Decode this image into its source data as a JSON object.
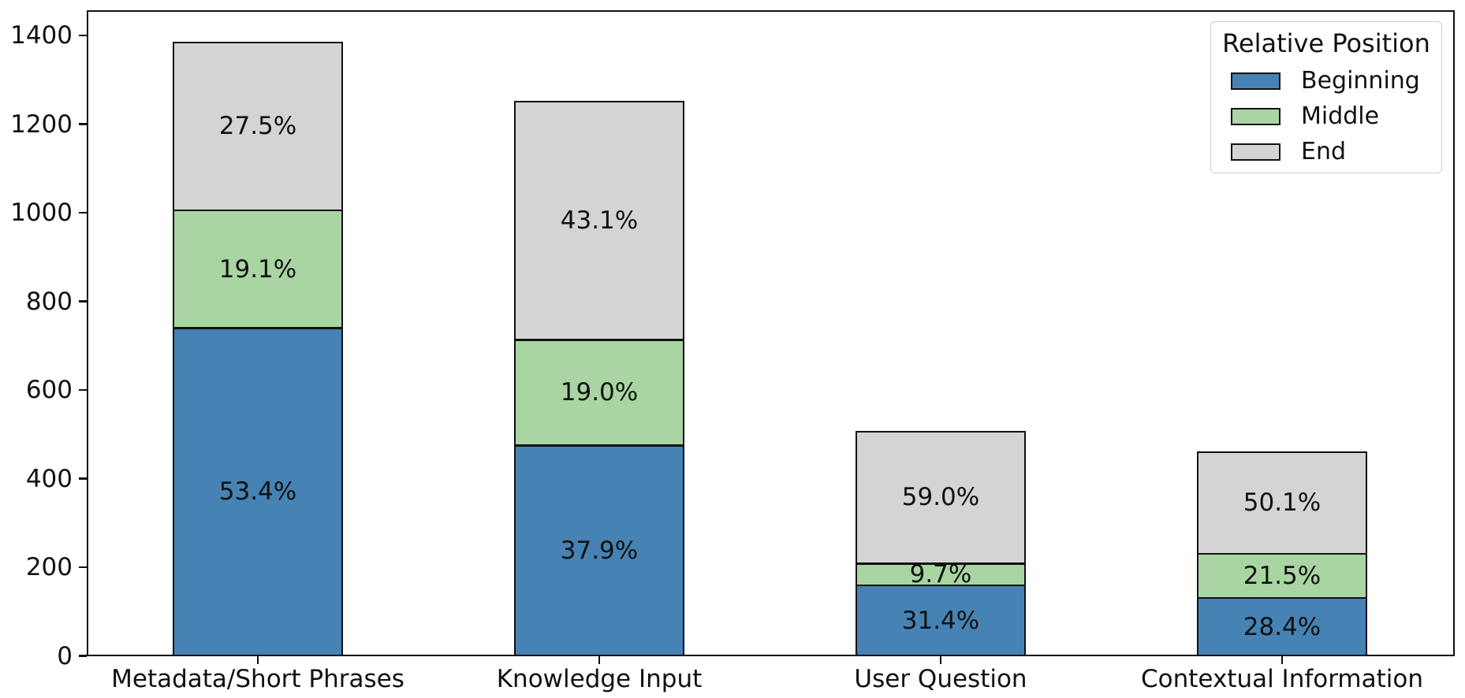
{
  "chart_data": {
    "type": "bar",
    "stacked": true,
    "title": "",
    "xlabel": "",
    "ylabel": "",
    "ylim": [
      0,
      1400
    ],
    "yticks": [
      0,
      200,
      400,
      600,
      800,
      1000,
      1200,
      1400
    ],
    "grid": false,
    "legend_position": "upper-right",
    "categories": [
      "Metadata/Short Phrases",
      "Knowledge Input",
      "User Question",
      "Contextual Information"
    ],
    "series": [
      {
        "name": "Beginning",
        "color": "#4682B4",
        "values": [
          740,
          475,
          159,
          131
        ],
        "percent_labels": [
          "53.4%",
          "37.9%",
          "31.4%",
          "28.4%"
        ]
      },
      {
        "name": "Middle",
        "color": "#A8D5A2",
        "values": [
          265,
          238,
          49,
          99
        ],
        "percent_labels": [
          "19.1%",
          "19.0%",
          "9.7%",
          "21.5%"
        ]
      },
      {
        "name": "End",
        "color": "#D4D4D4",
        "values": [
          381,
          540,
          299,
          231
        ],
        "percent_labels": [
          "27.5%",
          "43.1%",
          "59.0%",
          "50.1%"
        ]
      }
    ],
    "totals": [
      1386,
      1253,
      507,
      461
    ],
    "bar_edge_color": "#111111",
    "text_color": "#111111",
    "legend": {
      "title": "Relative Position",
      "entries": [
        "Beginning",
        "Middle",
        "End"
      ]
    }
  }
}
